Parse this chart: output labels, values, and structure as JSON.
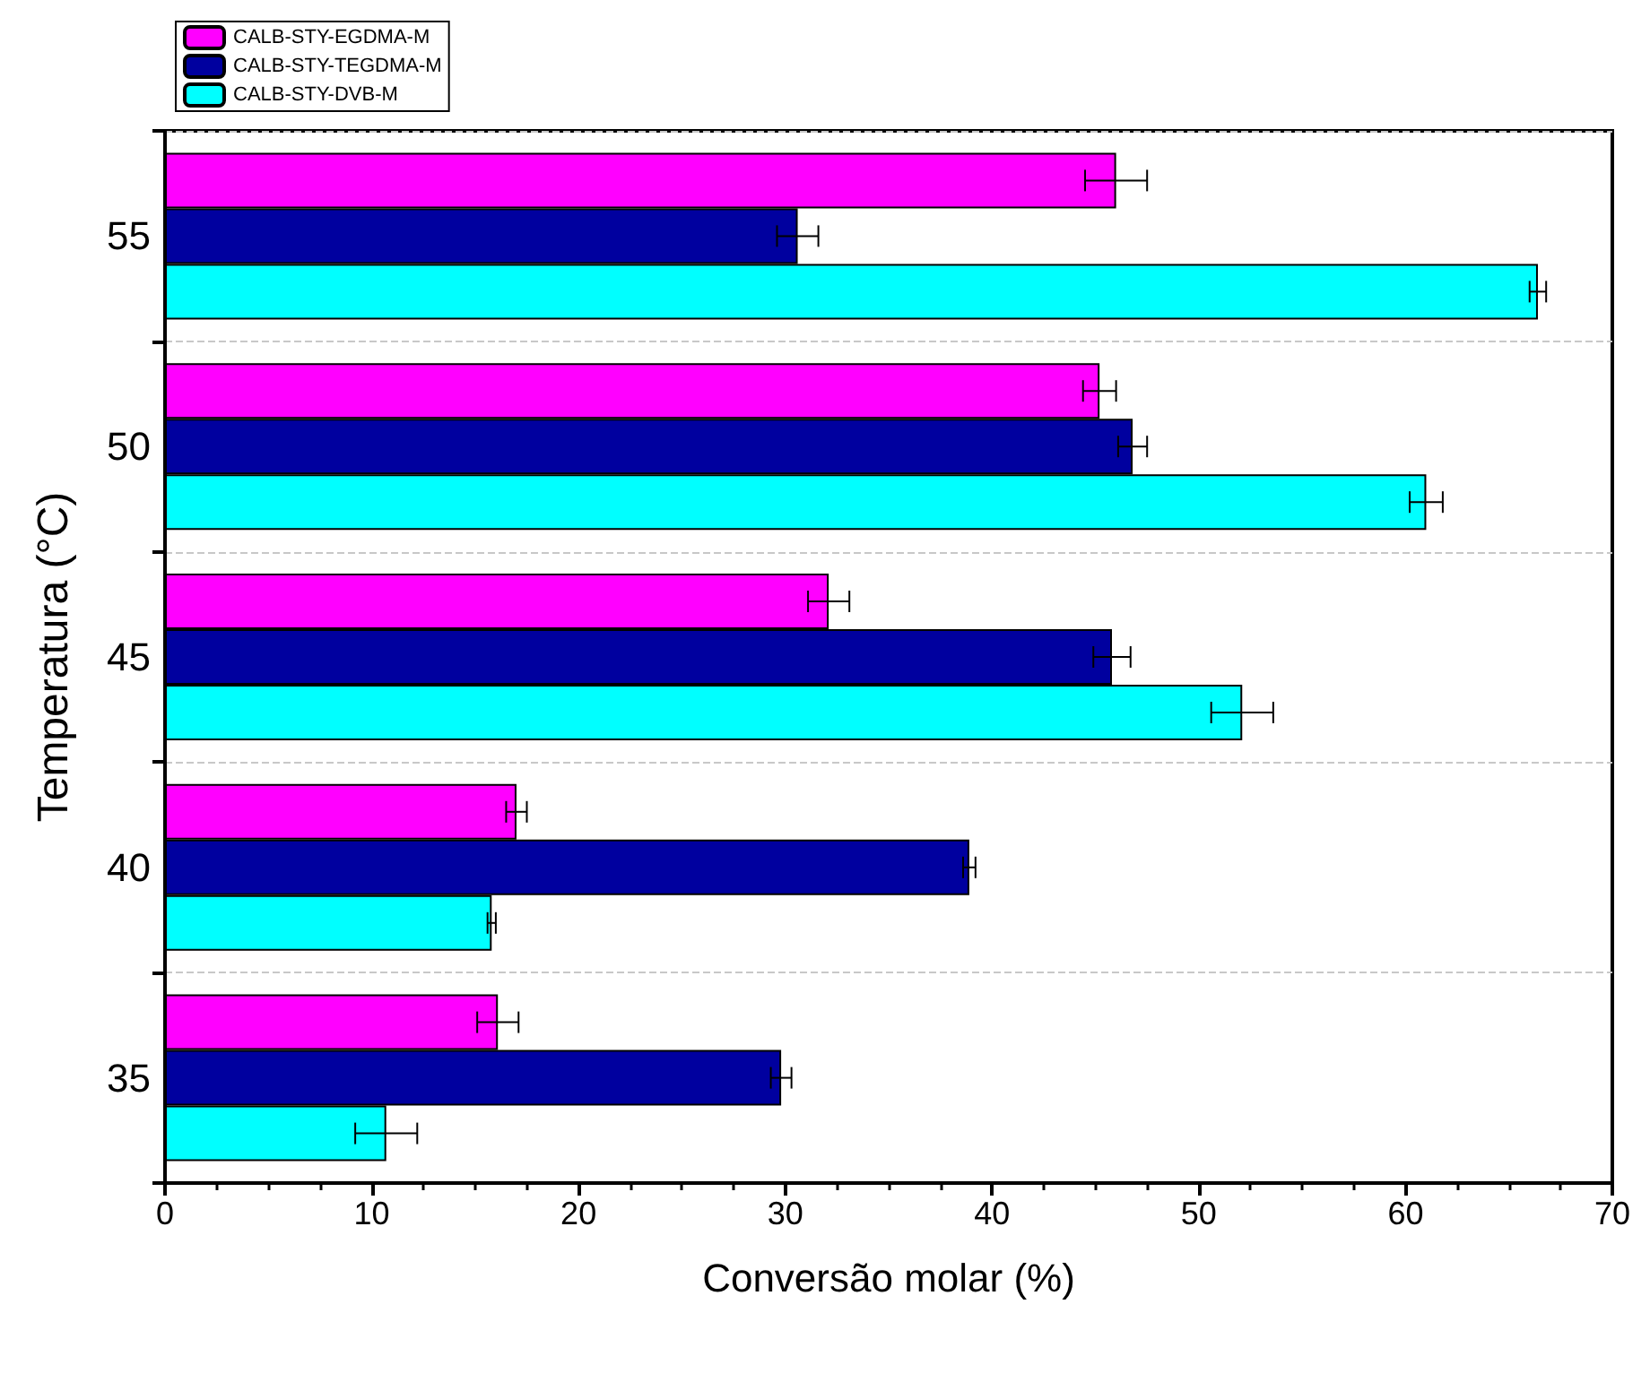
{
  "chart_data": {
    "type": "bar",
    "orientation": "horizontal",
    "xlabel": "Conversão molar (%)",
    "ylabel": "Temperatura (°C)",
    "categories": [
      "55",
      "50",
      "45",
      "40",
      "35"
    ],
    "series": [
      {
        "name": "CALB-STY-EGDMA-M",
        "color": "#ff00ff",
        "values": [
          46.0,
          45.2,
          32.1,
          17.0,
          16.1
        ],
        "errors": [
          1.5,
          0.8,
          1.0,
          0.5,
          1.0
        ]
      },
      {
        "name": "CALB-STY-TEGDMA-M",
        "color": "#00009f",
        "values": [
          30.6,
          46.8,
          45.8,
          38.9,
          29.8
        ],
        "errors": [
          1.0,
          0.7,
          0.9,
          0.3,
          0.5
        ]
      },
      {
        "name": "CALB-STY-DVB-M",
        "color": "#00ffff",
        "values": [
          66.4,
          61.0,
          52.1,
          15.8,
          10.7
        ],
        "errors": [
          0.4,
          0.8,
          1.5,
          0.2,
          1.5
        ]
      }
    ],
    "xlim": [
      0,
      70
    ],
    "xticks": [
      0,
      10,
      20,
      30,
      40,
      50,
      60,
      70
    ],
    "grid": "y",
    "legend": "top left"
  }
}
